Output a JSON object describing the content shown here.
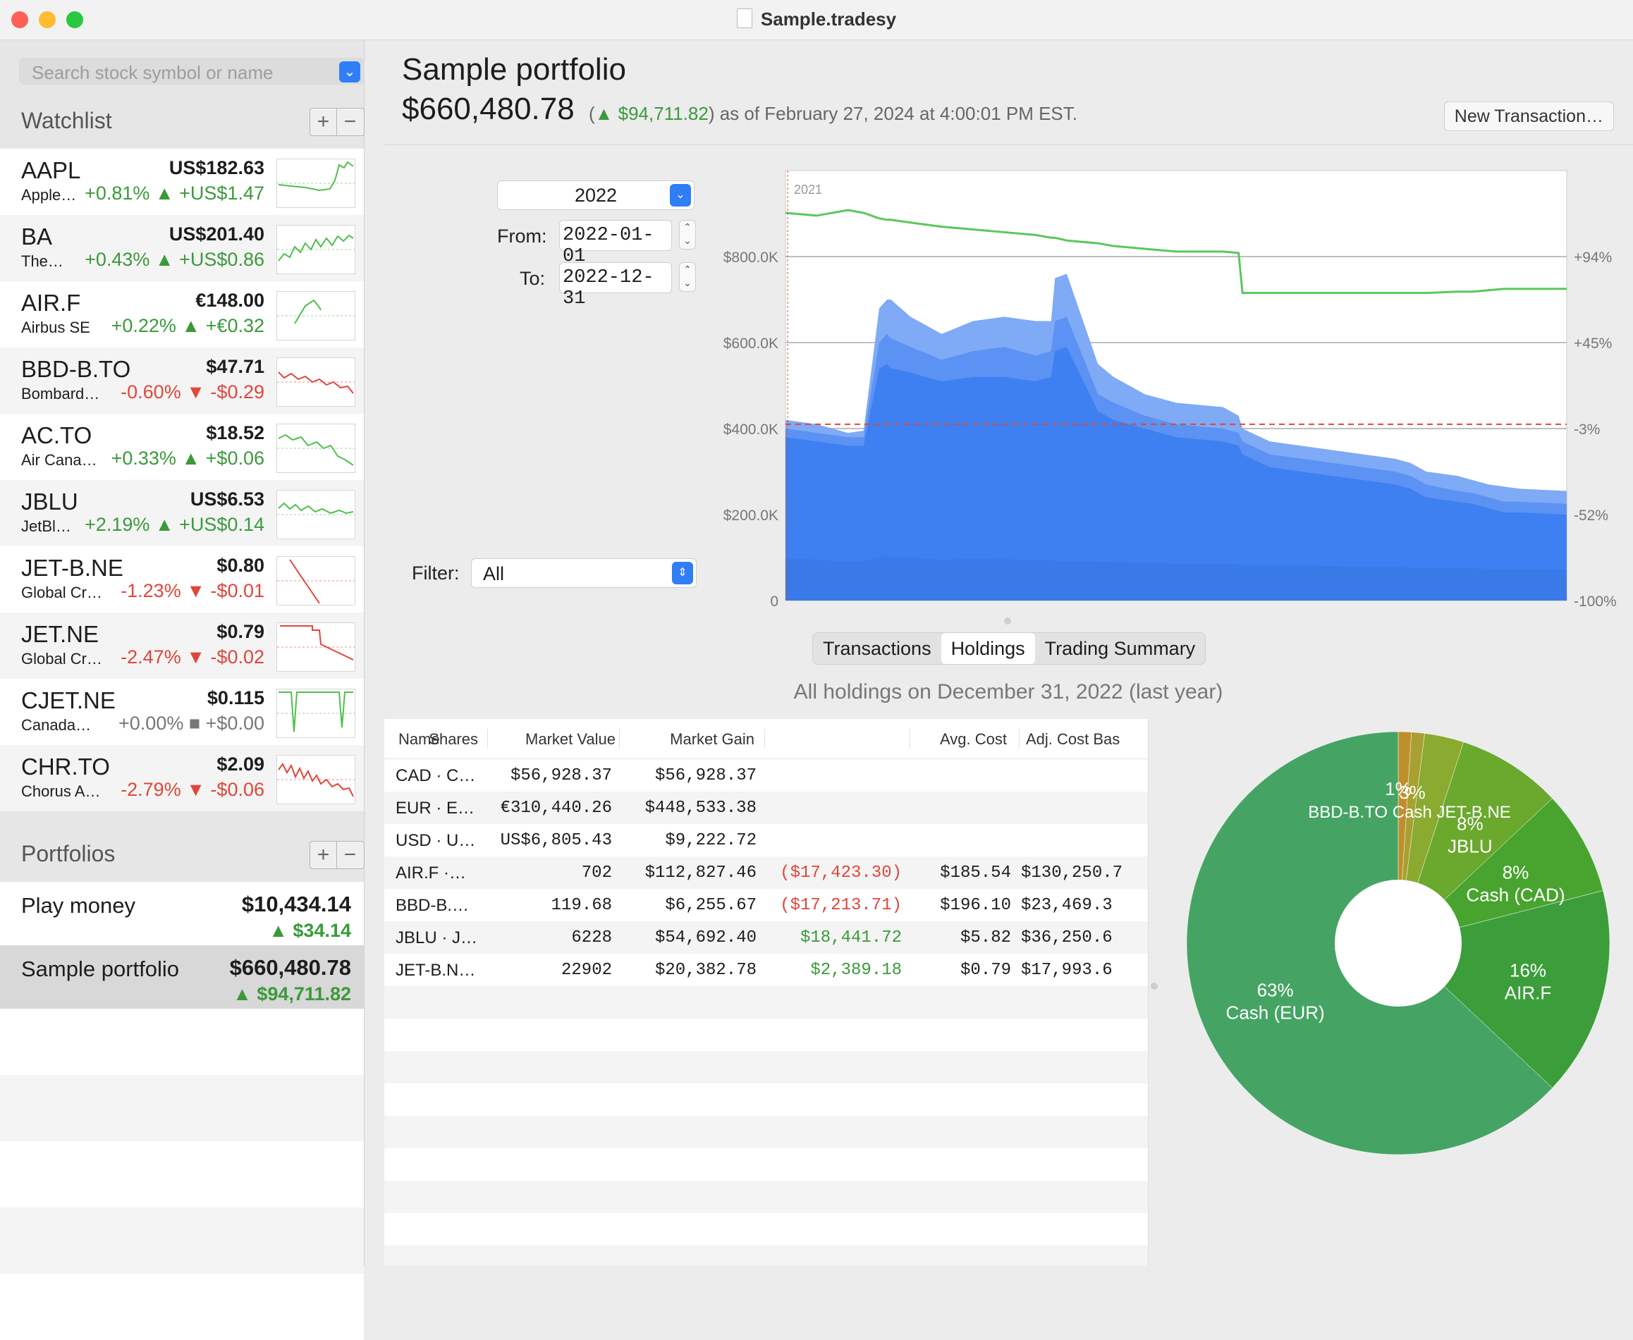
{
  "window": {
    "title": "Sample.tradesy"
  },
  "colors": {
    "accent": "#2f7ef6",
    "gain": "#3a9a3a",
    "loss": "#e0463a",
    "area": "#3a7ef0",
    "line": "#5ac85a"
  },
  "sidebar": {
    "search_placeholder": "Search stock symbol or name",
    "watchlist_title": "Watchlist",
    "portfolios_title": "Portfolios",
    "add": "+",
    "remove": "−",
    "watchlist": [
      {
        "symbol": "AAPL",
        "name": "Apple…",
        "price": "US$182.63",
        "change": "+0.81% ▲ +US$1.47",
        "trend": "up",
        "spark": "green"
      },
      {
        "symbol": "BA",
        "name": "The…",
        "price": "US$201.40",
        "change": "+0.43% ▲ +US$0.86",
        "trend": "up",
        "spark": "green"
      },
      {
        "symbol": "AIR.F",
        "name": "Airbus SE",
        "price": "€148.00",
        "change": "+0.22% ▲ +€0.32",
        "trend": "up",
        "spark": "green"
      },
      {
        "symbol": "BBD-B.TO",
        "name": "Bombard…",
        "price": "$47.71",
        "change": "-0.60% ▼ -$0.29",
        "trend": "down",
        "spark": "red"
      },
      {
        "symbol": "AC.TO",
        "name": "Air Cana…",
        "price": "$18.52",
        "change": "+0.33% ▲ +$0.06",
        "trend": "up",
        "spark": "green"
      },
      {
        "symbol": "JBLU",
        "name": "JetBl…",
        "price": "US$6.53",
        "change": "+2.19% ▲ +US$0.14",
        "trend": "up",
        "spark": "green"
      },
      {
        "symbol": "JET-B.NE",
        "name": "Global Cr…",
        "price": "$0.80",
        "change": "-1.23% ▼ -$0.01",
        "trend": "down",
        "spark": "red"
      },
      {
        "symbol": "JET.NE",
        "name": "Global Cr…",
        "price": "$0.79",
        "change": "-2.47% ▼ -$0.02",
        "trend": "down",
        "spark": "red"
      },
      {
        "symbol": "CJET.NE",
        "name": "Canada…",
        "price": "$0.115",
        "change": "+0.00% ■ +$0.00",
        "trend": "flat",
        "spark": "green"
      },
      {
        "symbol": "CHR.TO",
        "name": "Chorus A…",
        "price": "$2.09",
        "change": "-2.79% ▼ -$0.06",
        "trend": "down",
        "spark": "red"
      }
    ],
    "portfolios": [
      {
        "name": "Play money",
        "value": "$10,434.14",
        "change": "▲ $34.14"
      },
      {
        "name": "Sample portfolio",
        "value": "$660,480.78",
        "change": "▲ $94,711.82"
      }
    ]
  },
  "header": {
    "title": "Sample portfolio",
    "value": "$660,480.78",
    "paren_open": "(",
    "change": "▲ $94,711.82",
    "as_of": ") as of February 27, 2024 at 4:00:01 PM EST.",
    "new_transaction": "New Transaction…"
  },
  "controls": {
    "year": "2022",
    "from_label": "From:",
    "from": "2022-01-01",
    "to_label": "To:",
    "to": "2022-12-31",
    "filter_label": "Filter:",
    "filter": "All"
  },
  "chart_data": {
    "type": "area",
    "annotation": "2021",
    "ylim": [
      0,
      1000000
    ],
    "y_ticks": [
      "$800.0K",
      "$600.0K",
      "$400.0K",
      "$200.0K",
      "0"
    ],
    "y2_ticks": [
      "+94%",
      "+45%",
      "-3%",
      "-52%",
      "-100%"
    ],
    "x": [
      0,
      4,
      8,
      10,
      12,
      13,
      13.5,
      16,
      20,
      24,
      28,
      32,
      34,
      34.5,
      36,
      40,
      42,
      46,
      50,
      56,
      58,
      58.5,
      62,
      70,
      78,
      80,
      82,
      86,
      88,
      90,
      92,
      94,
      100
    ],
    "total": [
      420,
      410,
      390,
      395,
      680,
      700,
      700,
      660,
      620,
      650,
      660,
      650,
      650,
      750,
      760,
      550,
      520,
      480,
      460,
      450,
      430,
      400,
      370,
      350,
      330,
      320,
      300,
      290,
      280,
      270,
      265,
      260,
      255
    ],
    "band2": [
      400,
      390,
      380,
      380,
      600,
      620,
      610,
      590,
      560,
      580,
      590,
      570,
      580,
      650,
      660,
      480,
      460,
      430,
      410,
      400,
      390,
      370,
      340,
      320,
      300,
      290,
      270,
      255,
      250,
      240,
      230,
      230,
      225
    ],
    "band1": [
      380,
      370,
      360,
      360,
      540,
      550,
      540,
      530,
      510,
      520,
      520,
      510,
      520,
      580,
      590,
      440,
      420,
      400,
      380,
      370,
      360,
      340,
      310,
      290,
      270,
      260,
      240,
      230,
      225,
      215,
      205,
      205,
      200
    ],
    "base": [
      100,
      95,
      90,
      92,
      100,
      105,
      100,
      100,
      95,
      97,
      96,
      95,
      94,
      93,
      92,
      90,
      90,
      88,
      86,
      85,
      84,
      83,
      82,
      80,
      78,
      77,
      76,
      75,
      75,
      74,
      73,
      72,
      72
    ],
    "return_pct": [
      100,
      98,
      102,
      100,
      96,
      95,
      95,
      93,
      90,
      88,
      86,
      84,
      82,
      82,
      80,
      78,
      76,
      74,
      72,
      72,
      71,
      42,
      42,
      42,
      42,
      42,
      42,
      43,
      43,
      44,
      45,
      45,
      45
    ],
    "reference_level": 410
  },
  "tabs": [
    {
      "label": "Transactions",
      "active": false
    },
    {
      "label": "Holdings",
      "active": true
    },
    {
      "label": "Trading Summary",
      "active": false
    }
  ],
  "holdings_caption": "All holdings on December 31, 2022 (last year)",
  "table": {
    "headers": [
      "Name",
      "Shares",
      "Market Value",
      "Market Gain",
      "Avg. Cost",
      "Adj. Cost Bas"
    ],
    "rows": [
      {
        "name": "CAD · C…",
        "shares": "$56,928.37",
        "value": "$56,928.37",
        "gain": "",
        "gain_type": "",
        "avg": "",
        "adj": ""
      },
      {
        "name": "EUR · E…",
        "shares": "€310,440.26",
        "value": "$448,533.38",
        "gain": "",
        "gain_type": "",
        "avg": "",
        "adj": ""
      },
      {
        "name": "USD · U…",
        "shares": "US$6,805.43",
        "value": "$9,222.72",
        "gain": "",
        "gain_type": "",
        "avg": "",
        "adj": ""
      },
      {
        "name": "AIR.F ·…",
        "shares": "702",
        "value": "$112,827.46",
        "gain": "($17,423.30)",
        "gain_type": "loss",
        "avg": "$185.54",
        "adj": "$130,250.7"
      },
      {
        "name": "BBD-B.…",
        "shares": "119.68",
        "value": "$6,255.67",
        "gain": "($17,213.71)",
        "gain_type": "loss",
        "avg": "$196.10",
        "adj": "$23,469.3"
      },
      {
        "name": "JBLU · J…",
        "shares": "6228",
        "value": "$54,692.40",
        "gain": "$18,441.72",
        "gain_type": "gain",
        "avg": "$5.82",
        "adj": "$36,250.6"
      },
      {
        "name": "JET-B.N…",
        "shares": "22902",
        "value": "$20,382.78",
        "gain": "$2,389.18",
        "gain_type": "gain",
        "avg": "$0.79",
        "adj": "$17,993.6"
      }
    ]
  },
  "pie": {
    "slices": [
      {
        "label": "Cash (EUR)",
        "pct": 63,
        "text": "63%",
        "color": "#45a464"
      },
      {
        "label": "AIR.F",
        "pct": 16,
        "text": "16%",
        "color": "#3c9e3a"
      },
      {
        "label": "Cash (CAD)",
        "pct": 8,
        "text": "8%",
        "color": "#48a42e"
      },
      {
        "label": "JBLU",
        "pct": 8,
        "text": "8%",
        "color": "#6aa82e"
      },
      {
        "label": "JET-B.NE",
        "pct": 3,
        "text": "3%",
        "color": "#8aaa30"
      },
      {
        "label": "BBD-B.TO",
        "pct": 1,
        "text": "1%",
        "color": "#a8a030"
      },
      {
        "label": "Cash (USD)",
        "pct": 1,
        "text": "1%",
        "color": "#c08f2d"
      }
    ],
    "overlap_text": "BBD-B.TO Cash JET-B.NE"
  }
}
